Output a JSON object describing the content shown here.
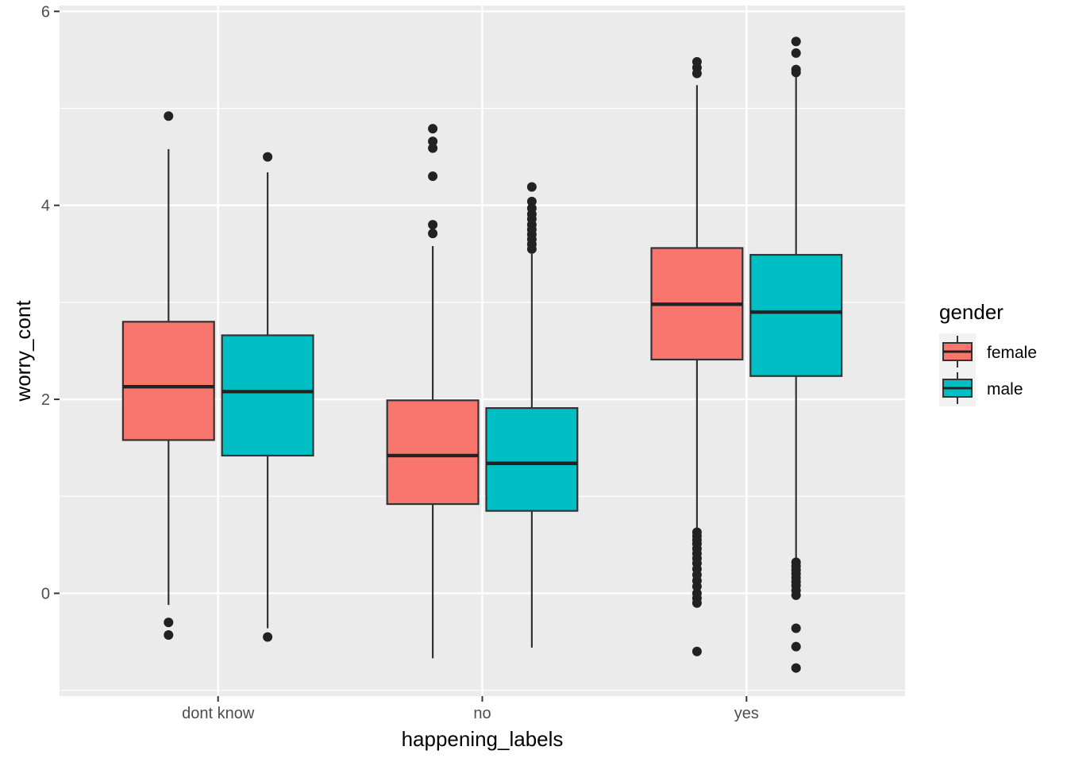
{
  "chart_data": {
    "type": "boxplot",
    "xlabel": "happening_labels",
    "ylabel": "worry_cont",
    "categories": [
      "dont know",
      "no",
      "yes"
    ],
    "y_ticks": [
      0,
      2,
      4,
      6
    ],
    "ylim": [
      -1.06,
      6.06
    ],
    "grid": true,
    "legend": {
      "title": "gender",
      "position": "right"
    },
    "series": [
      {
        "name": "female",
        "color": "#F8766D",
        "boxes": [
          {
            "category": "dont know",
            "lower_whisker": -0.12,
            "q1": 1.58,
            "median": 2.13,
            "q3": 2.8,
            "upper_whisker": 4.58,
            "outliers": [
              4.92,
              -0.3,
              -0.43
            ]
          },
          {
            "category": "no",
            "lower_whisker": -0.67,
            "q1": 0.92,
            "median": 1.42,
            "q3": 1.99,
            "upper_whisker": 3.58,
            "outliers": [
              4.79,
              4.66,
              4.59,
              4.3,
              3.8,
              3.71
            ]
          },
          {
            "category": "yes",
            "lower_whisker": 0.66,
            "q1": 2.41,
            "median": 2.98,
            "q3": 3.56,
            "upper_whisker": 5.24,
            "outliers": [
              5.48,
              5.42,
              5.36,
              0.63,
              0.59,
              0.55,
              0.51,
              0.46,
              0.41,
              0.36,
              0.31,
              0.25,
              0.19,
              0.13,
              0.07,
              0.0,
              -0.05,
              -0.1,
              -0.6
            ]
          }
        ]
      },
      {
        "name": "male",
        "color": "#00BFC4",
        "boxes": [
          {
            "category": "dont know",
            "lower_whisker": -0.36,
            "q1": 1.42,
            "median": 2.08,
            "q3": 2.66,
            "upper_whisker": 4.34,
            "outliers": [
              4.5,
              -0.45
            ]
          },
          {
            "category": "no",
            "lower_whisker": -0.56,
            "q1": 0.85,
            "median": 1.34,
            "q3": 1.91,
            "upper_whisker": 3.5,
            "outliers": [
              4.19,
              4.04,
              3.97,
              3.91,
              3.86,
              3.8,
              3.75,
              3.7,
              3.65,
              3.6,
              3.55
            ]
          },
          {
            "category": "yes",
            "lower_whisker": 0.34,
            "q1": 2.24,
            "median": 2.9,
            "q3": 3.49,
            "upper_whisker": 5.34,
            "outliers": [
              5.69,
              5.57,
              5.4,
              5.37,
              0.32,
              0.28,
              0.24,
              0.2,
              0.16,
              0.12,
              0.08,
              0.03,
              -0.02,
              -0.36,
              -0.55,
              -0.77
            ]
          }
        ]
      }
    ]
  }
}
